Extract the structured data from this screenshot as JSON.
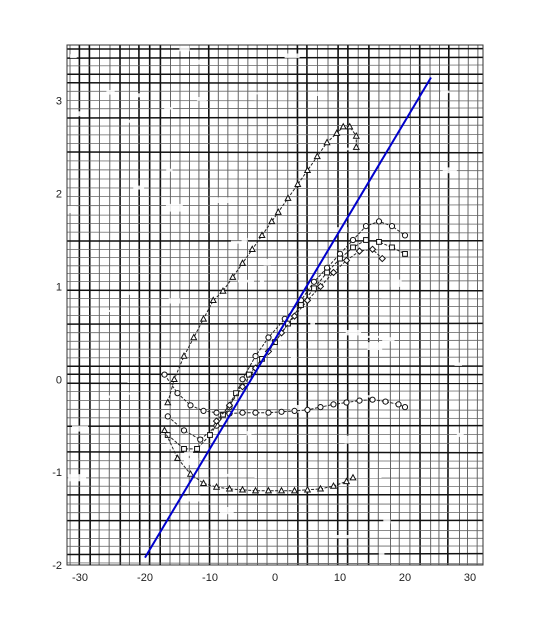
{
  "chart_data": {
    "type": "line",
    "title": "",
    "xlabel": "",
    "ylabel": "",
    "xlim": [
      -32,
      32
    ],
    "ylim": [
      -2,
      3.6
    ],
    "xticks": [
      -30,
      -20,
      -10,
      0,
      10,
      20,
      30
    ],
    "yticks": [
      -2,
      -1,
      0,
      1,
      2,
      3
    ],
    "xtick_labels": [
      "-30",
      "-20",
      "-10",
      "0",
      "10",
      "20",
      "30"
    ],
    "ytick_labels": [
      "-2",
      "-1",
      "0",
      "1",
      "2",
      "3"
    ],
    "grid": true,
    "background": "hand-drawn graph paper (scanned)",
    "fit_line": {
      "x": [
        -20,
        24
      ],
      "y": [
        -1.92,
        3.25
      ],
      "color": "#0000cc"
    },
    "series": [
      {
        "marker": "triangle",
        "x": [
          -16.5,
          -15.5,
          -14,
          -12.5,
          -11,
          -9.5,
          -8,
          -6.5,
          -5,
          -3.5,
          -2,
          -0.5,
          0.5,
          2,
          3.5,
          5,
          6.5,
          8,
          9.5,
          10.5,
          11.5,
          12.5,
          12.5
        ],
        "y": [
          -0.25,
          0.0,
          0.25,
          0.45,
          0.65,
          0.85,
          0.95,
          1.1,
          1.25,
          1.4,
          1.55,
          1.7,
          1.8,
          1.95,
          2.1,
          2.25,
          2.4,
          2.55,
          2.65,
          2.72,
          2.72,
          2.62,
          2.5
        ]
      },
      {
        "marker": "circle",
        "x": [
          -16.5,
          -14,
          -11.5,
          -9,
          -7,
          -5,
          -3,
          -1,
          1.5,
          4,
          6,
          8,
          10,
          12,
          14,
          16,
          18,
          20
        ],
        "y": [
          -0.4,
          -0.55,
          -0.65,
          -0.5,
          -0.3,
          0.0,
          0.25,
          0.45,
          0.65,
          0.85,
          1.05,
          1.2,
          1.35,
          1.5,
          1.65,
          1.7,
          1.65,
          1.55
        ]
      },
      {
        "marker": "square",
        "x": [
          -16.5,
          -14,
          -12,
          -10,
          -8,
          -6,
          -4,
          -2,
          0,
          2,
          4,
          6,
          8,
          10,
          12,
          14,
          16,
          18,
          20
        ],
        "y": [
          -0.6,
          -0.75,
          -0.75,
          -0.6,
          -0.38,
          -0.15,
          0.05,
          0.22,
          0.4,
          0.6,
          0.8,
          0.98,
          1.15,
          1.3,
          1.42,
          1.5,
          1.48,
          1.42,
          1.35
        ]
      },
      {
        "marker": "diamond",
        "x": [
          -9,
          -7,
          -5,
          -3,
          -1,
          1,
          3,
          5,
          7,
          9,
          11,
          13,
          15,
          16.5
        ],
        "y": [
          -0.45,
          -0.28,
          -0.08,
          0.12,
          0.3,
          0.5,
          0.68,
          0.85,
          1.0,
          1.15,
          1.28,
          1.38,
          1.4,
          1.3
        ]
      },
      {
        "marker": "circle",
        "x": [
          -17,
          -15,
          -13,
          -11,
          -9,
          -7,
          -5,
          -3,
          -1,
          1,
          3,
          5,
          7,
          9,
          11,
          13,
          15,
          17,
          19,
          20
        ],
        "y": [
          0.05,
          -0.15,
          -0.28,
          -0.34,
          -0.36,
          -0.37,
          -0.36,
          -0.36,
          -0.36,
          -0.35,
          -0.34,
          -0.33,
          -0.3,
          -0.27,
          -0.25,
          -0.23,
          -0.22,
          -0.24,
          -0.27,
          -0.3
        ]
      },
      {
        "marker": "triangle",
        "x": [
          -17,
          -15,
          -13,
          -11,
          -9,
          -7,
          -5,
          -3,
          -1,
          1,
          3,
          5,
          7,
          9,
          11,
          12
        ],
        "y": [
          -0.55,
          -0.85,
          -1.02,
          -1.12,
          -1.16,
          -1.18,
          -1.19,
          -1.2,
          -1.2,
          -1.2,
          -1.2,
          -1.19,
          -1.18,
          -1.15,
          -1.1,
          -1.06
        ]
      }
    ]
  }
}
